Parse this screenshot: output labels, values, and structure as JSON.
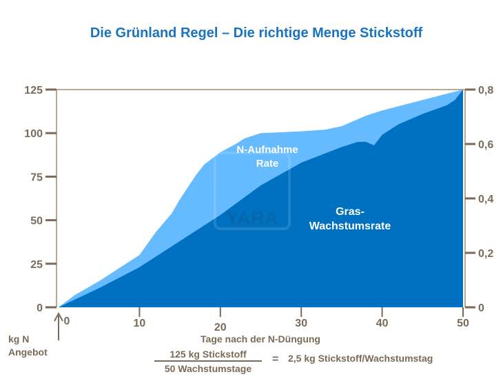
{
  "chart_data": {
    "type": "area",
    "title": "Die Grünland Regel – Die richtige Menge Stickstoff",
    "xlabel": "Tage nach der N-Düngung",
    "ylabel": "kg N Angebot",
    "ylabel_lines": [
      "kg N",
      "Angebot"
    ],
    "xlim": [
      0,
      50
    ],
    "ylim": [
      0,
      125
    ],
    "y2lim": [
      0,
      0.8
    ],
    "x_ticks": [
      "0",
      "10",
      "20",
      "30",
      "40",
      "50"
    ],
    "y_ticks": [
      "0",
      "25",
      "50",
      "75",
      "100",
      "125"
    ],
    "y2_ticks": [
      "0",
      "0,2",
      "0,4",
      "0,6",
      "0,8"
    ],
    "grid": false,
    "series": [
      {
        "name": "N-Aufnahme Rate",
        "label_lines": [
          "N-Aufnahme",
          "Rate"
        ],
        "color": "#66bbff",
        "x": [
          0,
          2,
          5,
          9,
          10,
          12,
          14,
          15,
          17,
          18,
          20,
          22,
          23,
          25,
          30,
          33,
          35,
          38,
          40,
          45,
          50
        ],
        "y": [
          0,
          7,
          15,
          27,
          30,
          43,
          54,
          62,
          76,
          82,
          89,
          94,
          97,
          100,
          101,
          102,
          104,
          110,
          113,
          119,
          125
        ]
      },
      {
        "name": "Gras-Wachstumsrate",
        "label_lines": [
          "Gras-",
          "Wachstumsrate"
        ],
        "color": "#0070c0",
        "x": [
          0,
          5,
          10,
          15,
          20,
          25,
          30,
          35,
          37,
          38,
          39,
          40,
          42,
          45,
          48,
          49,
          50
        ],
        "y": [
          0,
          11,
          23,
          38,
          53,
          70,
          83,
          92,
          95,
          95,
          93,
          99,
          105,
          111,
          116,
          119,
          125
        ]
      }
    ],
    "formula": {
      "numerator": "125 kg Stickstoff",
      "denominator": "50 Wachstumstage",
      "equals": "=",
      "result": "2,5 kg Stickstoff/Wachstumstag"
    },
    "watermark": "YARA",
    "colors": {
      "title": "#1a73c0",
      "axis": "#7a6a58",
      "frame": "#b8a898"
    }
  }
}
